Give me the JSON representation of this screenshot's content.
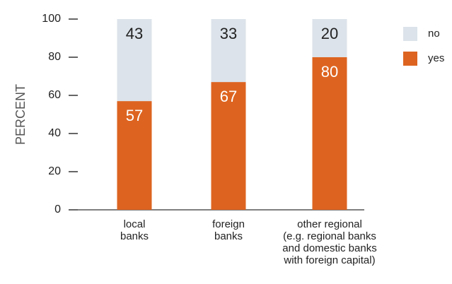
{
  "chart_data": {
    "type": "stacked_bar",
    "y_label": "PERCENT",
    "categories": [
      [
        "local",
        "banks"
      ],
      [
        "foreign",
        "banks"
      ],
      [
        "other regional",
        "(e.g. regional banks",
        "and domestic banks",
        "with foreign capital)"
      ]
    ],
    "series": [
      {
        "name": "yes",
        "color": "#dd6420",
        "values": [
          57,
          67,
          80
        ]
      },
      {
        "name": "no",
        "color": "#dce3ea",
        "values": [
          43,
          33,
          20
        ]
      }
    ],
    "ylim": [
      0,
      100
    ],
    "yticks": [
      0,
      20,
      40,
      60,
      80,
      100
    ]
  }
}
